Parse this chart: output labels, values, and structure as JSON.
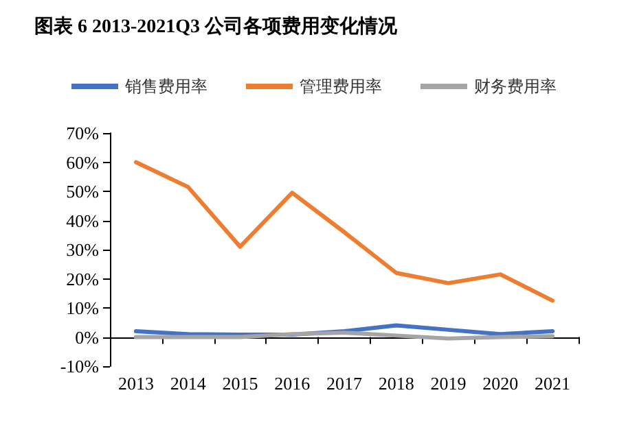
{
  "chart_data": {
    "type": "line",
    "title": "图表 6 2013-2021Q3 公司各项费用变化情况",
    "categories": [
      "2013",
      "2014",
      "2015",
      "2016",
      "2017",
      "2018",
      "2019",
      "2020",
      "2021"
    ],
    "series": [
      {
        "name": "销售费用率",
        "color": "#4472c4",
        "values": [
          2,
          1,
          0.8,
          0.8,
          2,
          4,
          2.5,
          1,
          2
        ]
      },
      {
        "name": "管理费用率",
        "color": "#ed7d31",
        "values": [
          60,
          51.5,
          31,
          49.5,
          36,
          22,
          18.5,
          21.5,
          12.5
        ]
      },
      {
        "name": "财务费用率",
        "color": "#a5a5a5",
        "values": [
          0,
          0,
          0,
          1,
          1.5,
          0.5,
          -0.5,
          0,
          0.3
        ]
      }
    ],
    "ylim": [
      -10,
      70
    ],
    "yticks": [
      {
        "value": -10,
        "label": "-10%"
      },
      {
        "value": 0,
        "label": "0%"
      },
      {
        "value": 10,
        "label": "10%"
      },
      {
        "value": 20,
        "label": "20%"
      },
      {
        "value": 30,
        "label": "30%"
      },
      {
        "value": 40,
        "label": "40%"
      },
      {
        "value": 50,
        "label": "50%"
      },
      {
        "value": 60,
        "label": "60%"
      },
      {
        "value": 70,
        "label": "70%"
      }
    ],
    "grid": false,
    "legend": "top",
    "marker": "none",
    "line_style": "solid"
  }
}
